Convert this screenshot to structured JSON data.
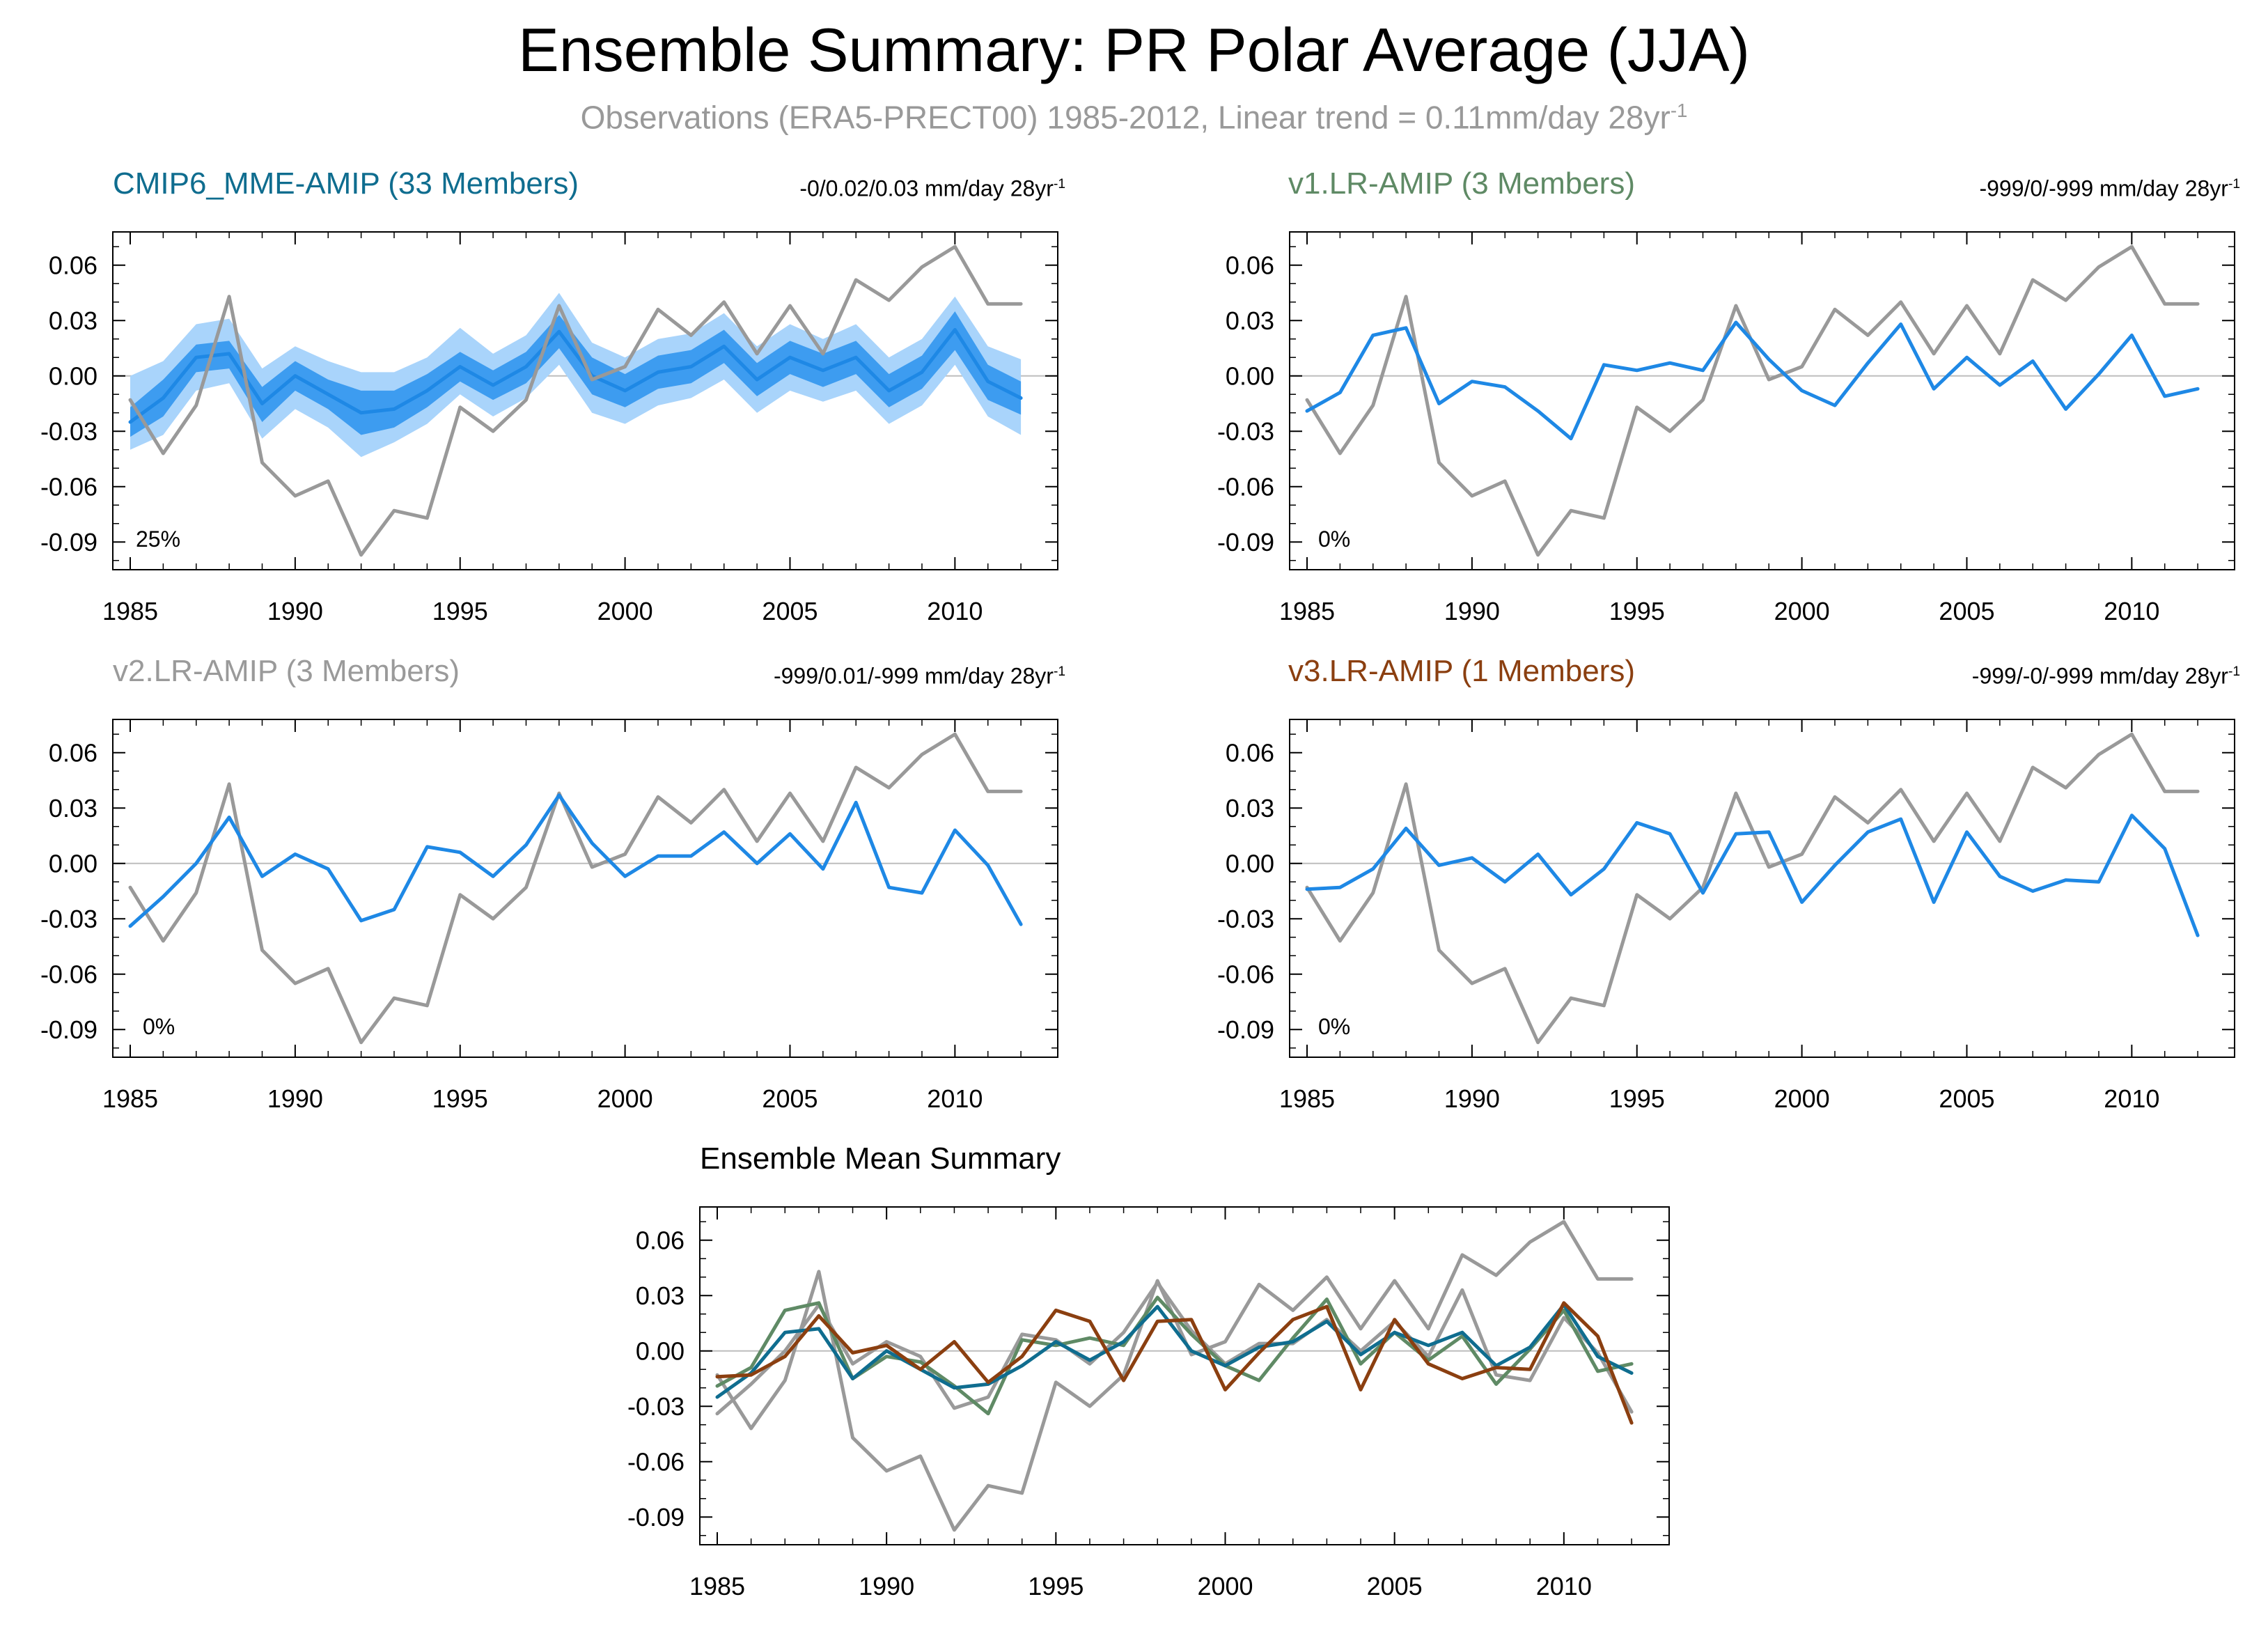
{
  "title": "Ensemble Summary: PR Polar Average (JJA)",
  "subtitle": {
    "text": "Observations (ERA5-PRECT00) 1985-2012, Linear trend = 0.11mm/day 28yr",
    "superscript": "-1"
  },
  "colors": {
    "observation": "#999999",
    "model_line": "#1e88e5",
    "band_outer": "#a9d4fb",
    "band_inner": "#3d9cf0",
    "cmip6_title": "#0f6d8f",
    "v1_title": "#5f8a65",
    "v2_title": "#9a9a9a",
    "v3_title": "#8b3f10",
    "mean_v1": "#5f8a65",
    "mean_v2": "#9a9a9a",
    "mean_v3": "#8b3f10",
    "mean_cmip6": "#0f6d8f"
  },
  "panels": {
    "cmip6": {
      "title": "CMIP6_MME-AMIP (33 Members)",
      "trend": "-0/0.02/0.03 mm/day 28yr",
      "trend_sup": "-1",
      "pct": "25%"
    },
    "v1": {
      "title": "v1.LR-AMIP (3 Members)",
      "trend": "-999/0/-999 mm/day 28yr",
      "trend_sup": "-1",
      "pct": "0%"
    },
    "v2": {
      "title": "v2.LR-AMIP (3 Members)",
      "trend": "-999/0.01/-999 mm/day 28yr",
      "trend_sup": "-1",
      "pct": "0%"
    },
    "v3": {
      "title": "v3.LR-AMIP (1 Members)",
      "trend": "-999/-0/-999 mm/day 28yr",
      "trend_sup": "-1",
      "pct": "0%"
    },
    "mean": {
      "title": "Ensemble Mean Summary"
    }
  },
  "chart_data": {
    "type": "line",
    "x": [
      1985,
      1986,
      1987,
      1988,
      1989,
      1990,
      1991,
      1992,
      1993,
      1994,
      1995,
      1996,
      1997,
      1998,
      1999,
      2000,
      2001,
      2002,
      2003,
      2004,
      2005,
      2006,
      2007,
      2008,
      2009,
      2010,
      2011,
      2012
    ],
    "x_ticks": [
      "1985",
      "1990",
      "1995",
      "2000",
      "2005",
      "2010"
    ],
    "y_ticks": [
      "0.06",
      "0.03",
      "0.00",
      "-0.03",
      "-0.06",
      "-0.09"
    ],
    "xlim": [
      1985,
      2012.5
    ],
    "ylim": [
      -0.105,
      0.078
    ],
    "observations": [
      -0.013,
      -0.042,
      -0.016,
      0.043,
      -0.047,
      -0.065,
      -0.057,
      -0.097,
      -0.073,
      -0.077,
      -0.017,
      -0.03,
      -0.013,
      0.038,
      -0.002,
      0.005,
      0.036,
      0.022,
      0.04,
      0.012,
      0.038,
      0.012,
      0.052,
      0.041,
      0.059,
      0.07,
      0.039,
      0.039
    ],
    "panels": [
      {
        "id": "cmip6",
        "series": [
          {
            "values": [
              -0.025,
              -0.012,
              0.01,
              0.012,
              -0.015,
              0.0,
              -0.01,
              -0.02,
              -0.018,
              -0.008,
              0.005,
              -0.005,
              0.005,
              0.024,
              0.0,
              -0.008,
              0.002,
              0.005,
              0.016,
              -0.002,
              0.01,
              0.003,
              0.01,
              -0.008,
              0.002,
              0.025,
              -0.003,
              -0.012
            ]
          }
        ],
        "band_outer_low": [
          -0.04,
          -0.032,
          -0.008,
          -0.004,
          -0.034,
          -0.018,
          -0.028,
          -0.044,
          -0.036,
          -0.026,
          -0.01,
          -0.022,
          -0.012,
          0.006,
          -0.02,
          -0.026,
          -0.016,
          -0.012,
          -0.002,
          -0.02,
          -0.008,
          -0.014,
          -0.008,
          -0.026,
          -0.016,
          0.006,
          -0.022,
          -0.032
        ],
        "band_outer_high": [
          0.0,
          0.008,
          0.028,
          0.031,
          0.004,
          0.016,
          0.008,
          0.002,
          0.002,
          0.01,
          0.026,
          0.012,
          0.022,
          0.045,
          0.018,
          0.01,
          0.02,
          0.023,
          0.034,
          0.016,
          0.028,
          0.02,
          0.028,
          0.01,
          0.02,
          0.043,
          0.016,
          0.009
        ],
        "band_inner_low": [
          -0.033,
          -0.022,
          0.002,
          0.004,
          -0.025,
          -0.008,
          -0.018,
          -0.032,
          -0.028,
          -0.017,
          -0.003,
          -0.013,
          -0.004,
          0.015,
          -0.01,
          -0.017,
          -0.007,
          -0.004,
          0.007,
          -0.011,
          0.001,
          -0.006,
          0.001,
          -0.017,
          -0.007,
          0.014,
          -0.013,
          -0.021
        ],
        "band_inner_high": [
          -0.017,
          -0.002,
          0.017,
          0.019,
          -0.006,
          0.008,
          -0.002,
          -0.008,
          -0.008,
          0.001,
          0.013,
          0.003,
          0.013,
          0.033,
          0.01,
          0.001,
          0.011,
          0.014,
          0.025,
          0.007,
          0.019,
          0.012,
          0.019,
          0.001,
          0.011,
          0.035,
          0.006,
          -0.003
        ]
      },
      {
        "id": "v1",
        "series": [
          {
            "values": [
              -0.019,
              -0.009,
              0.022,
              0.026,
              -0.015,
              -0.003,
              -0.006,
              -0.019,
              -0.034,
              0.006,
              0.003,
              0.007,
              0.003,
              0.029,
              0.009,
              -0.008,
              -0.016,
              0.007,
              0.028,
              -0.007,
              0.01,
              -0.005,
              0.008,
              -0.018,
              0.001,
              0.022,
              -0.011,
              -0.007
            ]
          }
        ]
      },
      {
        "id": "v2",
        "series": [
          {
            "values": [
              -0.034,
              -0.018,
              0.0,
              0.025,
              -0.007,
              0.005,
              -0.003,
              -0.031,
              -0.025,
              0.009,
              0.006,
              -0.007,
              0.01,
              0.037,
              0.011,
              -0.007,
              0.004,
              0.004,
              0.017,
              0.0,
              0.016,
              -0.003,
              0.033,
              -0.013,
              -0.016,
              0.018,
              -0.001,
              -0.033
            ]
          }
        ]
      },
      {
        "id": "v3",
        "series": [
          {
            "values": [
              -0.014,
              -0.013,
              -0.003,
              0.019,
              -0.001,
              0.003,
              -0.01,
              0.005,
              -0.017,
              -0.003,
              0.022,
              0.016,
              -0.016,
              0.016,
              0.017,
              -0.021,
              -0.001,
              0.017,
              0.024,
              -0.021,
              0.017,
              -0.007,
              -0.015,
              -0.009,
              -0.01,
              0.026,
              0.008,
              -0.039
            ]
          }
        ]
      }
    ]
  }
}
